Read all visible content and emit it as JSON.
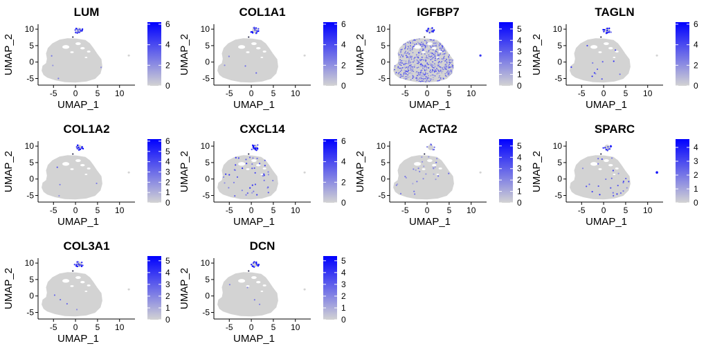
{
  "chart_data": {
    "type": "scatter",
    "subtype": "umap-feature-plot-grid",
    "low_color": "#d3d3d3",
    "high_color": "#0000ff",
    "panels": [
      {
        "title": "LUM",
        "xlabel": "UMAP_1",
        "ylabel": "UMAP_2",
        "xlim": [
          -8.5,
          13.5
        ],
        "ylim": [
          -7,
          11.5
        ],
        "xticks": [
          -5,
          0,
          5,
          10
        ],
        "yticks": [
          -5,
          0,
          5,
          10
        ],
        "legend_ticks": [
          0,
          2,
          4,
          6
        ],
        "legend_max": 6.2,
        "expression": "fibro"
      },
      {
        "title": "COL1A1",
        "xlabel": "UMAP_1",
        "ylabel": "UMAP_2",
        "xlim": [
          -8.5,
          13.5
        ],
        "ylim": [
          -7,
          11.5
        ],
        "xticks": [
          -5,
          0,
          5,
          10
        ],
        "yticks": [
          -5,
          0,
          5,
          10
        ],
        "legend_ticks": [
          0,
          2,
          4,
          6
        ],
        "legend_max": 6.2,
        "expression": "fibro"
      },
      {
        "title": "IGFBP7",
        "xlabel": "UMAP_1",
        "ylabel": "UMAP_2",
        "xlim": [
          -8.5,
          13.5
        ],
        "ylim": [
          -7,
          11.5
        ],
        "xticks": [
          -5,
          0,
          5,
          10
        ],
        "yticks": [
          -5,
          0,
          5,
          10
        ],
        "legend_ticks": [
          0,
          1,
          2,
          3,
          4,
          5
        ],
        "legend_max": 5.6,
        "expression": "broad"
      },
      {
        "title": "TAGLN",
        "xlabel": "UMAP_1",
        "ylabel": "UMAP_2",
        "xlim": [
          -8.5,
          13.5
        ],
        "ylim": [
          -7,
          11.5
        ],
        "xticks": [
          -5,
          0,
          5,
          10
        ],
        "yticks": [
          -5,
          0,
          5,
          10
        ],
        "legend_ticks": [
          0,
          2,
          4,
          6
        ],
        "legend_max": 6.2,
        "expression": "fibro_few"
      },
      {
        "title": "COL1A2",
        "xlabel": "UMAP_1",
        "ylabel": "UMAP_2",
        "xlim": [
          -8.5,
          13.5
        ],
        "ylim": [
          -7,
          11.5
        ],
        "xticks": [
          -5,
          0,
          5,
          10
        ],
        "yticks": [
          -5,
          0,
          5,
          10
        ],
        "legend_ticks": [
          0,
          1,
          2,
          3,
          4,
          5,
          6
        ],
        "legend_max": 6.2,
        "expression": "fibro"
      },
      {
        "title": "CXCL14",
        "xlabel": "UMAP_1",
        "ylabel": "UMAP_2",
        "xlim": [
          -8.5,
          13.5
        ],
        "ylim": [
          -7,
          11.5
        ],
        "xticks": [
          -5,
          0,
          5,
          10
        ],
        "yticks": [
          -5,
          0,
          5,
          10
        ],
        "legend_ticks": [
          0,
          2,
          4,
          6
        ],
        "legend_max": 6.2,
        "expression": "scattered"
      },
      {
        "title": "ACTA2",
        "xlabel": "UMAP_1",
        "ylabel": "UMAP_2",
        "xlim": [
          -8.5,
          13.5
        ],
        "ylim": [
          -7,
          11.5
        ],
        "xticks": [
          -5,
          0,
          5,
          10
        ],
        "yticks": [
          -5,
          0,
          5,
          10
        ],
        "legend_ticks": [
          0,
          1,
          2,
          3,
          4,
          5
        ],
        "legend_max": 5.6,
        "expression": "scattered_light"
      },
      {
        "title": "SPARC",
        "xlabel": "UMAP_1",
        "ylabel": "UMAP_2",
        "xlim": [
          -8.5,
          13.5
        ],
        "ylim": [
          -7,
          11.5
        ],
        "xticks": [
          -5,
          0,
          5,
          10
        ],
        "yticks": [
          -5,
          0,
          5,
          10
        ],
        "legend_ticks": [
          0,
          1,
          2,
          3,
          4
        ],
        "legend_max": 4.6,
        "expression": "sparc"
      },
      {
        "title": "COL3A1",
        "xlabel": "UMAP_1",
        "ylabel": "UMAP_2",
        "xlim": [
          -8.5,
          13.5
        ],
        "ylim": [
          -7,
          11.5
        ],
        "xticks": [
          -5,
          0,
          5,
          10
        ],
        "yticks": [
          -5,
          0,
          5,
          10
        ],
        "legend_ticks": [
          0,
          1,
          2,
          3,
          4,
          5
        ],
        "legend_max": 5.4,
        "expression": "fibro"
      },
      {
        "title": "DCN",
        "xlabel": "UMAP_1",
        "ylabel": "UMAP_2",
        "xlim": [
          -8.5,
          13.5
        ],
        "ylim": [
          -7,
          11.5
        ],
        "xticks": [
          -5,
          0,
          5,
          10
        ],
        "yticks": [
          -5,
          0,
          5,
          10
        ],
        "legend_ticks": [
          0,
          1,
          2,
          3,
          4,
          5
        ],
        "legend_max": 5.4,
        "expression": "fibro"
      }
    ]
  }
}
